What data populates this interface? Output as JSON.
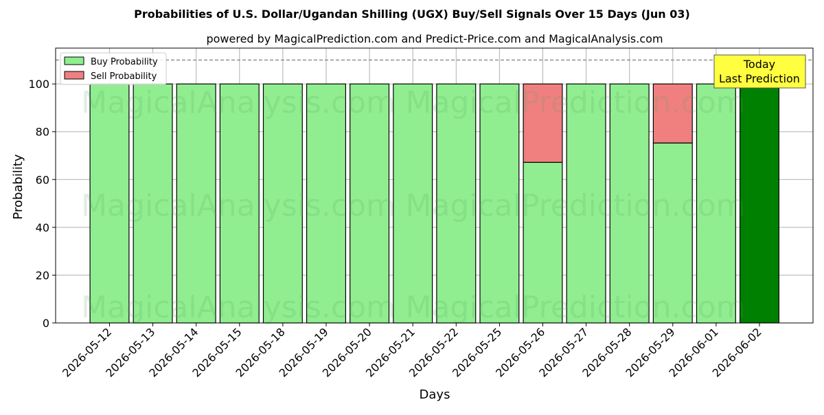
{
  "chart_data": {
    "type": "bar",
    "stacked": true,
    "title": "Probabilities of U.S. Dollar/Ugandan Shilling (UGX) Buy/Sell Signals Over 15 Days (Jun 03)",
    "subtitle": "powered by MagicalPrediction.com and Predict-Price.com and MagicalAnalysis.com",
    "xlabel": "Days",
    "ylabel": "Probability",
    "ylim": [
      0,
      115
    ],
    "yticks": [
      0,
      20,
      40,
      60,
      80,
      100
    ],
    "grid": true,
    "legend_position": "top-left",
    "reference_line": 110,
    "categories": [
      "2026-05-12",
      "2026-05-13",
      "2026-05-14",
      "2026-05-15",
      "2026-05-18",
      "2026-05-19",
      "2026-05-20",
      "2026-05-21",
      "2026-05-22",
      "2026-05-25",
      "2026-05-26",
      "2026-05-27",
      "2026-05-28",
      "2026-05-29",
      "2026-06-01",
      "2026-06-02"
    ],
    "series": [
      {
        "name": "Buy Probability",
        "color": "#90ee90",
        "values": [
          100,
          100,
          100,
          100,
          100,
          100,
          100,
          100,
          100,
          100,
          67.2,
          100,
          100,
          75.3,
          100,
          100
        ]
      },
      {
        "name": "Sell Probability",
        "color": "#f08080",
        "values": [
          0,
          0,
          0,
          0,
          0,
          0,
          0,
          0,
          0,
          0,
          32.8,
          0,
          0,
          24.7,
          0,
          0
        ]
      }
    ],
    "highlight": {
      "index": 15,
      "color": "#008000"
    },
    "annotation": {
      "line1": "Today",
      "line2": "Last Prediction",
      "background": "#ffff40"
    },
    "watermarks": [
      "MagicalAnalysis.com",
      "MagicalPrediction.com"
    ]
  }
}
